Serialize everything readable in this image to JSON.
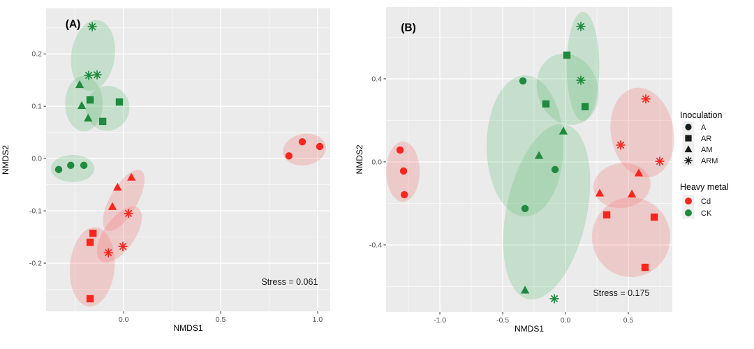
{
  "figure": {
    "panel_bg": "#EBEBEB",
    "grid_color": "#FFFFFF",
    "tick_text_color": "#4D4D4D",
    "text_color": "#000000",
    "annotation_color": "#1A1A1A",
    "legend_symbol_color": "#1A1A1A",
    "legend_key_bg": "#EFEFEF"
  },
  "colors": {
    "cd": "#F8261C",
    "ck": "#1F8A3E",
    "cd_fill": "rgba(246,118,118,0.28)",
    "ck_fill": "rgba(105,190,125,0.28)"
  },
  "legend": {
    "inoculation": {
      "title": "Inoculation",
      "items": [
        {
          "label": "A",
          "shape": "circle"
        },
        {
          "label": "AR",
          "shape": "square"
        },
        {
          "label": "AM",
          "shape": "triangle"
        },
        {
          "label": "ARM",
          "shape": "asterisk"
        }
      ]
    },
    "heavy_metal": {
      "title": "Heavy metal",
      "items": [
        {
          "label": "Cd",
          "color_key": "cd"
        },
        {
          "label": "CK",
          "color_key": "ck"
        }
      ]
    }
  },
  "chart_data": [
    {
      "type": "scatter",
      "id": "A",
      "label": "(A)",
      "label_pos": {
        "x": -0.3,
        "y": 0.25
      },
      "xlabel": "NMDS1",
      "ylabel": "NMDS2",
      "stress": "Stress = 0.061",
      "stress_pos": {
        "x": 0.856,
        "y": -0.236
      },
      "xlim": [
        -0.4,
        1.065
      ],
      "ylim": [
        -0.292,
        0.287
      ],
      "xticks": [
        {
          "v": 0.0,
          "label": "0.0"
        },
        {
          "v": 0.5,
          "label": "0.5"
        },
        {
          "v": 1.0,
          "label": "1.0"
        }
      ],
      "yticks": [
        {
          "v": 0.2,
          "label": "0.2"
        },
        {
          "v": 0.1,
          "label": "0.1"
        },
        {
          "v": 0.0,
          "label": "0.0"
        },
        {
          "v": -0.1,
          "label": "-0.1"
        },
        {
          "v": -0.2,
          "label": "-0.2"
        }
      ],
      "xminor": [
        -0.25,
        0.25,
        0.75
      ],
      "yminor": [
        0.25,
        0.15,
        0.05,
        -0.05,
        -0.15,
        -0.25
      ],
      "groups": [
        {
          "metal": "CK",
          "inoculation": "A",
          "shape": "circle",
          "points": [
            [
              -0.335,
              -0.021
            ],
            [
              -0.273,
              -0.013
            ],
            [
              -0.205,
              -0.013
            ]
          ]
        },
        {
          "metal": "CK",
          "inoculation": "AR",
          "shape": "square",
          "points": [
            [
              -0.173,
              0.112
            ],
            [
              -0.022,
              0.108
            ],
            [
              -0.108,
              0.071
            ]
          ]
        },
        {
          "metal": "CK",
          "inoculation": "AM",
          "shape": "triangle",
          "points": [
            [
              -0.227,
              0.141
            ],
            [
              -0.216,
              0.101
            ],
            [
              -0.183,
              0.077
            ]
          ]
        },
        {
          "metal": "CK",
          "inoculation": "ARM",
          "shape": "asterisk",
          "points": [
            [
              -0.162,
              0.252
            ],
            [
              -0.18,
              0.159
            ],
            [
              -0.137,
              0.16
            ]
          ]
        },
        {
          "metal": "Cd",
          "inoculation": "A",
          "shape": "circle",
          "points": [
            [
              0.852,
              0.005
            ],
            [
              0.921,
              0.032
            ],
            [
              1.011,
              0.023
            ]
          ]
        },
        {
          "metal": "Cd",
          "inoculation": "AR",
          "shape": "square",
          "points": [
            [
              -0.158,
              -0.143
            ],
            [
              -0.173,
              -0.16
            ],
            [
              -0.173,
              -0.268
            ]
          ]
        },
        {
          "metal": "Cd",
          "inoculation": "AM",
          "shape": "triangle",
          "points": [
            [
              0.04,
              -0.036
            ],
            [
              -0.032,
              -0.055
            ],
            [
              -0.058,
              -0.092
            ]
          ]
        },
        {
          "metal": "Cd",
          "inoculation": "ARM",
          "shape": "asterisk",
          "points": [
            [
              0.025,
              -0.105
            ],
            [
              -0.004,
              -0.168
            ],
            [
              -0.079,
              -0.18
            ]
          ]
        }
      ],
      "ellipses": [
        {
          "metal": "CK",
          "cx": -0.158,
          "cy": 0.197,
          "rx": 0.112,
          "ry": 0.068,
          "angle": 8
        },
        {
          "metal": "CK",
          "cx": -0.205,
          "cy": 0.105,
          "rx": 0.097,
          "ry": 0.053,
          "angle": 0
        },
        {
          "metal": "CK",
          "cx": -0.083,
          "cy": 0.096,
          "rx": 0.112,
          "ry": 0.043,
          "angle": 15
        },
        {
          "metal": "CK",
          "cx": -0.263,
          "cy": -0.019,
          "rx": 0.112,
          "ry": 0.026,
          "angle": 0
        },
        {
          "metal": "Cd",
          "cx": 0.932,
          "cy": 0.017,
          "rx": 0.112,
          "ry": 0.03,
          "angle": -10
        },
        {
          "metal": "Cd",
          "cx": 0.0,
          "cy": -0.08,
          "rx": 0.07,
          "ry": 0.066,
          "angle": 30
        },
        {
          "metal": "Cd",
          "cx": -0.022,
          "cy": -0.145,
          "rx": 0.08,
          "ry": 0.062,
          "angle": 35
        },
        {
          "metal": "Cd",
          "cx": -0.162,
          "cy": -0.207,
          "rx": 0.115,
          "ry": 0.076,
          "angle": 5
        }
      ]
    },
    {
      "type": "scatter",
      "id": "B",
      "label": "(B)",
      "label_pos": {
        "x": -1.31,
        "y": 0.63
      },
      "xlabel": "NMDS1",
      "ylabel": "NMDS2",
      "stress": "Stress = 0.175",
      "stress_pos": {
        "x": 0.444,
        "y": -0.632
      },
      "xlim": [
        -1.428,
        0.85
      ],
      "ylim": [
        -0.723,
        0.746
      ],
      "xticks": [
        {
          "v": -1.0,
          "label": "-1.0"
        },
        {
          "v": -0.5,
          "label": "-0.5"
        },
        {
          "v": 0.0,
          "label": "0.0"
        },
        {
          "v": 0.5,
          "label": "0.5"
        }
      ],
      "yticks": [
        {
          "v": 0.4,
          "label": "0.4"
        },
        {
          "v": 0.0,
          "label": "0.0"
        },
        {
          "v": -0.4,
          "label": "-0.4"
        }
      ],
      "xminor": [
        -1.25,
        -0.75,
        -0.25,
        0.25,
        0.75
      ],
      "yminor": [
        0.6,
        0.2,
        -0.2,
        -0.6
      ],
      "groups": [
        {
          "metal": "CK",
          "inoculation": "A",
          "shape": "circle",
          "points": [
            [
              -0.339,
              0.39
            ],
            [
              -0.083,
              -0.037
            ],
            [
              -0.322,
              -0.225
            ]
          ]
        },
        {
          "metal": "CK",
          "inoculation": "AR",
          "shape": "square",
          "points": [
            [
              0.011,
              0.514
            ],
            [
              -0.156,
              0.279
            ],
            [
              0.156,
              0.266
            ]
          ]
        },
        {
          "metal": "CK",
          "inoculation": "AM",
          "shape": "triangle",
          "points": [
            [
              -0.017,
              0.148
            ],
            [
              -0.211,
              0.03
            ],
            [
              -0.322,
              -0.618
            ]
          ]
        },
        {
          "metal": "CK",
          "inoculation": "ARM",
          "shape": "asterisk",
          "points": [
            [
              0.122,
              0.652
            ],
            [
              0.122,
              0.393
            ],
            [
              -0.089,
              -0.659
            ]
          ]
        },
        {
          "metal": "Cd",
          "inoculation": "A",
          "shape": "circle",
          "points": [
            [
              -1.317,
              0.057
            ],
            [
              -1.289,
              -0.044
            ],
            [
              -1.283,
              -0.158
            ]
          ]
        },
        {
          "metal": "Cd",
          "inoculation": "AR",
          "shape": "square",
          "points": [
            [
              0.328,
              -0.255
            ],
            [
              0.706,
              -0.266
            ],
            [
              0.633,
              -0.508
            ]
          ]
        },
        {
          "metal": "Cd",
          "inoculation": "AM",
          "shape": "triangle",
          "points": [
            [
              0.583,
              -0.054
            ],
            [
              0.528,
              -0.155
            ],
            [
              0.272,
              -0.151
            ]
          ]
        },
        {
          "metal": "Cd",
          "inoculation": "ARM",
          "shape": "asterisk",
          "points": [
            [
              0.639,
              0.303
            ],
            [
              0.439,
              0.081
            ],
            [
              0.75,
              0.003
            ]
          ]
        }
      ],
      "ellipses": [
        {
          "metal": "CK",
          "cx": 0.139,
          "cy": 0.46,
          "rx": 0.13,
          "ry": 0.263,
          "angle": 0
        },
        {
          "metal": "CK",
          "cx": 0.017,
          "cy": 0.35,
          "rx": 0.24,
          "ry": 0.175,
          "angle": -20
        },
        {
          "metal": "CK",
          "cx": -0.322,
          "cy": 0.077,
          "rx": 0.306,
          "ry": 0.34,
          "angle": 0
        },
        {
          "metal": "CK",
          "cx": -0.15,
          "cy": -0.24,
          "rx": 0.32,
          "ry": 0.43,
          "angle": 12
        },
        {
          "metal": "Cd",
          "cx": -1.294,
          "cy": -0.047,
          "rx": 0.133,
          "ry": 0.145,
          "angle": 0
        },
        {
          "metal": "Cd",
          "cx": 0.611,
          "cy": 0.141,
          "rx": 0.25,
          "ry": 0.218,
          "angle": -10
        },
        {
          "metal": "Cd",
          "cx": 0.45,
          "cy": -0.114,
          "rx": 0.228,
          "ry": 0.108,
          "angle": -8
        },
        {
          "metal": "Cd",
          "cx": 0.522,
          "cy": -0.363,
          "rx": 0.311,
          "ry": 0.192,
          "angle": 0
        }
      ]
    }
  ]
}
